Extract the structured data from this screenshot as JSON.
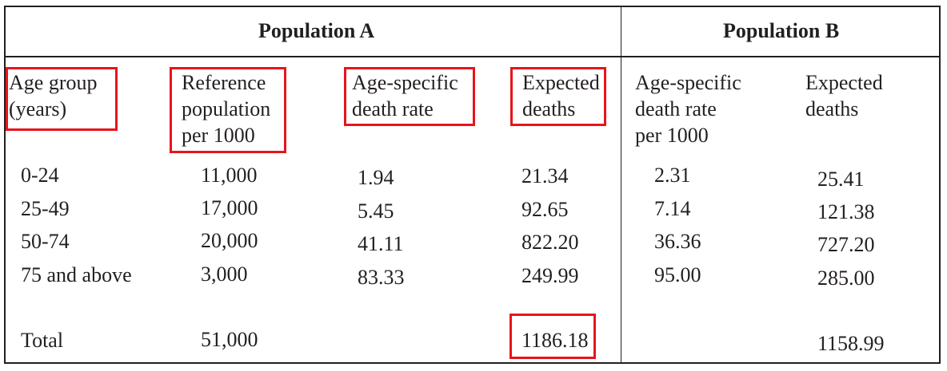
{
  "population_a": {
    "title": "Population A",
    "headers": {
      "age_group": [
        "Age group",
        "(years)"
      ],
      "reference_population": [
        "Reference",
        "population",
        "per 1000"
      ],
      "death_rate": [
        "Age-specific",
        "death rate"
      ],
      "expected_deaths": [
        "Expected",
        "deaths"
      ]
    }
  },
  "population_b": {
    "title": "Population B",
    "headers": {
      "death_rate": [
        "Age-specific",
        "death rate",
        "per 1000"
      ],
      "expected_deaths": [
        "Expected",
        "deaths"
      ]
    }
  },
  "rows": [
    {
      "age": "0-24",
      "ref": "11,000",
      "rate_a": "1.94",
      "deaths_a": "21.34",
      "rate_b": "2.31",
      "deaths_b": "25.41"
    },
    {
      "age": "25-49",
      "ref": "17,000",
      "rate_a": "5.45",
      "deaths_a": "92.65",
      "rate_b": "7.14",
      "deaths_b": "121.38"
    },
    {
      "age": "50-74",
      "ref": "20,000",
      "rate_a": "41.11",
      "deaths_a": "822.20",
      "rate_b": "36.36",
      "deaths_b": "727.20"
    },
    {
      "age": "75 and above",
      "ref": "3,000",
      "rate_a": "83.33",
      "deaths_a": "249.99",
      "rate_b": "95.00",
      "deaths_b": "285.00"
    }
  ],
  "total": {
    "label": "Total",
    "ref": "51,000",
    "deaths_a": "1186.18",
    "deaths_b": "1158.99"
  },
  "highlight_color": "#e8141b"
}
